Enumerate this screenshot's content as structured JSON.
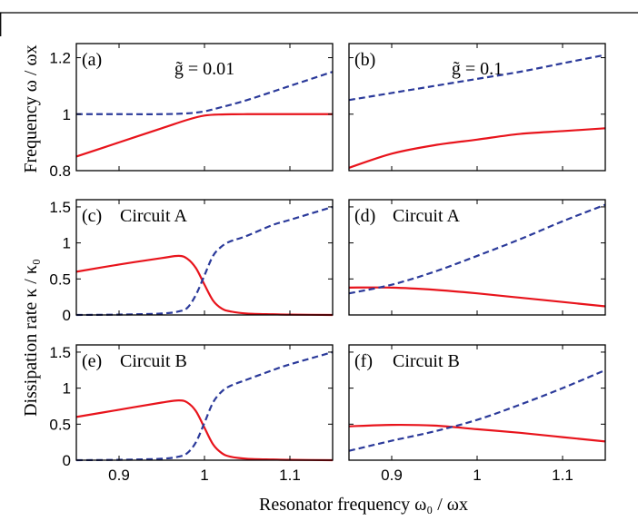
{
  "figure": {
    "xlabel": "Resonator frequency ω₀ / ωx",
    "ylabel_top": "Frequency ω / ωx",
    "ylabel_bottom": "Dissipation rate κ / κ₀"
  },
  "colors": {
    "solid": "#e8141c",
    "dashed": "#2b3a9a",
    "axis": "#000000"
  },
  "chart_data": [
    {
      "id": "a",
      "type": "line",
      "tag": "(a)",
      "annotation": "g̃ = 0.01",
      "xlim": [
        0.85,
        1.15
      ],
      "ylim": [
        0.8,
        1.25
      ],
      "xticks": [
        0.9,
        1.0,
        1.1
      ],
      "yticks": [
        0.8,
        1.0,
        1.2
      ],
      "ytick_labels": [
        "0.8",
        "1",
        "1.2"
      ],
      "x": [
        0.85,
        0.9,
        0.95,
        0.98,
        1.0,
        1.02,
        1.05,
        1.1,
        1.15
      ],
      "series": [
        {
          "style": "solid",
          "values": [
            0.85,
            0.9,
            0.95,
            0.98,
            0.995,
            0.999,
            1.0,
            1.0,
            1.0
          ]
        },
        {
          "style": "dashed",
          "values": [
            1.0,
            1.0,
            1.0,
            1.003,
            1.01,
            1.025,
            1.05,
            1.1,
            1.15
          ]
        }
      ]
    },
    {
      "id": "b",
      "type": "line",
      "tag": "(b)",
      "annotation": "g̃ = 0.1",
      "xlim": [
        0.85,
        1.15
      ],
      "ylim": [
        0.8,
        1.25
      ],
      "xticks": [
        0.9,
        1.0,
        1.1
      ],
      "yticks": [
        0.8,
        1.0,
        1.2
      ],
      "ytick_labels": [],
      "x": [
        0.85,
        0.9,
        0.95,
        1.0,
        1.05,
        1.1,
        1.15
      ],
      "series": [
        {
          "style": "solid",
          "values": [
            0.81,
            0.86,
            0.89,
            0.91,
            0.93,
            0.94,
            0.95
          ]
        },
        {
          "style": "dashed",
          "values": [
            1.05,
            1.075,
            1.1,
            1.125,
            1.15,
            1.18,
            1.21
          ]
        }
      ]
    },
    {
      "id": "c",
      "type": "line",
      "tag": "(c)",
      "annotation": "Circuit A",
      "xlim": [
        0.85,
        1.15
      ],
      "ylim": [
        0,
        1.6
      ],
      "xticks": [
        0.9,
        1.0,
        1.1
      ],
      "yticks": [
        0,
        0.5,
        1.0,
        1.5
      ],
      "ytick_labels": [
        "0",
        "0.5",
        "1",
        "1.5"
      ],
      "x": [
        0.85,
        0.9,
        0.95,
        0.97,
        0.98,
        0.99,
        1.0,
        1.01,
        1.02,
        1.03,
        1.05,
        1.08,
        1.1,
        1.15
      ],
      "series": [
        {
          "style": "solid",
          "values": [
            0.6,
            0.7,
            0.79,
            0.82,
            0.78,
            0.65,
            0.42,
            0.2,
            0.09,
            0.05,
            0.02,
            0.01,
            0.005,
            0.0
          ]
        },
        {
          "style": "dashed",
          "values": [
            0.0,
            0.005,
            0.02,
            0.05,
            0.1,
            0.28,
            0.55,
            0.82,
            0.95,
            1.02,
            1.1,
            1.25,
            1.32,
            1.5
          ]
        }
      ]
    },
    {
      "id": "d",
      "type": "line",
      "tag": "(d)",
      "annotation": "Circuit A",
      "xlim": [
        0.85,
        1.15
      ],
      "ylim": [
        0,
        1.6
      ],
      "xticks": [
        0.9,
        1.0,
        1.1
      ],
      "yticks": [
        0,
        0.5,
        1.0,
        1.5
      ],
      "ytick_labels": [],
      "x": [
        0.85,
        0.9,
        0.95,
        1.0,
        1.05,
        1.1,
        1.15
      ],
      "series": [
        {
          "style": "solid",
          "values": [
            0.38,
            0.38,
            0.35,
            0.3,
            0.24,
            0.18,
            0.12
          ]
        },
        {
          "style": "dashed",
          "values": [
            0.3,
            0.42,
            0.6,
            0.82,
            1.05,
            1.3,
            1.53
          ]
        }
      ]
    },
    {
      "id": "e",
      "type": "line",
      "tag": "(e)",
      "annotation": "Circuit B",
      "xlim": [
        0.85,
        1.15
      ],
      "ylim": [
        0,
        1.6
      ],
      "xticks": [
        0.9,
        1.0,
        1.1
      ],
      "yticks": [
        0,
        0.5,
        1.0,
        1.5
      ],
      "ytick_labels": [
        "0",
        "0.5",
        "1",
        "1.5"
      ],
      "x": [
        0.85,
        0.9,
        0.95,
        0.97,
        0.98,
        0.99,
        1.0,
        1.01,
        1.02,
        1.03,
        1.05,
        1.08,
        1.1,
        1.15
      ],
      "series": [
        {
          "style": "solid",
          "values": [
            0.6,
            0.7,
            0.8,
            0.83,
            0.8,
            0.68,
            0.45,
            0.22,
            0.1,
            0.05,
            0.02,
            0.01,
            0.005,
            0.0
          ]
        },
        {
          "style": "dashed",
          "values": [
            0.0,
            0.005,
            0.02,
            0.05,
            0.1,
            0.25,
            0.52,
            0.8,
            0.95,
            1.03,
            1.12,
            1.25,
            1.33,
            1.5
          ]
        }
      ]
    },
    {
      "id": "f",
      "type": "line",
      "tag": "(f)",
      "annotation": "Circuit B",
      "xlim": [
        0.85,
        1.15
      ],
      "ylim": [
        0,
        1.6
      ],
      "xticks": [
        0.9,
        1.0,
        1.1
      ],
      "yticks": [
        0,
        0.5,
        1.0,
        1.5
      ],
      "ytick_labels": [],
      "x": [
        0.85,
        0.9,
        0.95,
        1.0,
        1.05,
        1.1,
        1.15
      ],
      "series": [
        {
          "style": "solid",
          "values": [
            0.47,
            0.49,
            0.48,
            0.43,
            0.38,
            0.32,
            0.26
          ]
        },
        {
          "style": "dashed",
          "values": [
            0.13,
            0.27,
            0.4,
            0.56,
            0.77,
            1.0,
            1.25
          ]
        }
      ]
    }
  ],
  "xtick_labels": [
    "0.9",
    "1",
    "1.1"
  ]
}
